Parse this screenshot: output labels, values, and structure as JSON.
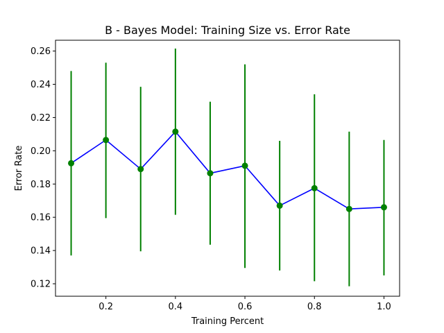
{
  "chart_data": {
    "type": "line",
    "title": "B - Bayes Model: Training Size vs. Error Rate",
    "xlabel": "Training Percent",
    "ylabel": "Error Rate",
    "xlim": [
      0.055,
      1.045
    ],
    "ylim": [
      0.1125,
      0.2665
    ],
    "x_ticks": [
      "0.2",
      "0.4",
      "0.6",
      "0.8",
      "1.0"
    ],
    "y_ticks": [
      "0.12",
      "0.14",
      "0.16",
      "0.18",
      "0.20",
      "0.22",
      "0.24",
      "0.26"
    ],
    "grid": false,
    "line_color": "#0000ff",
    "marker_color": "#008000",
    "errorbar_color": "#008000",
    "series": [
      {
        "x": [
          0.1,
          0.2,
          0.3,
          0.4,
          0.5,
          0.6,
          0.7,
          0.8,
          0.9,
          1.0
        ],
        "values": [
          0.1925,
          0.2065,
          0.189,
          0.2115,
          0.1865,
          0.191,
          0.167,
          0.1775,
          0.165,
          0.166
        ],
        "err_low": [
          0.137,
          0.1595,
          0.1395,
          0.1615,
          0.1435,
          0.1295,
          0.128,
          0.1215,
          0.1185,
          0.125
        ],
        "err_high": [
          0.248,
          0.253,
          0.2385,
          0.2615,
          0.2295,
          0.252,
          0.206,
          0.234,
          0.2115,
          0.2065
        ]
      }
    ]
  }
}
